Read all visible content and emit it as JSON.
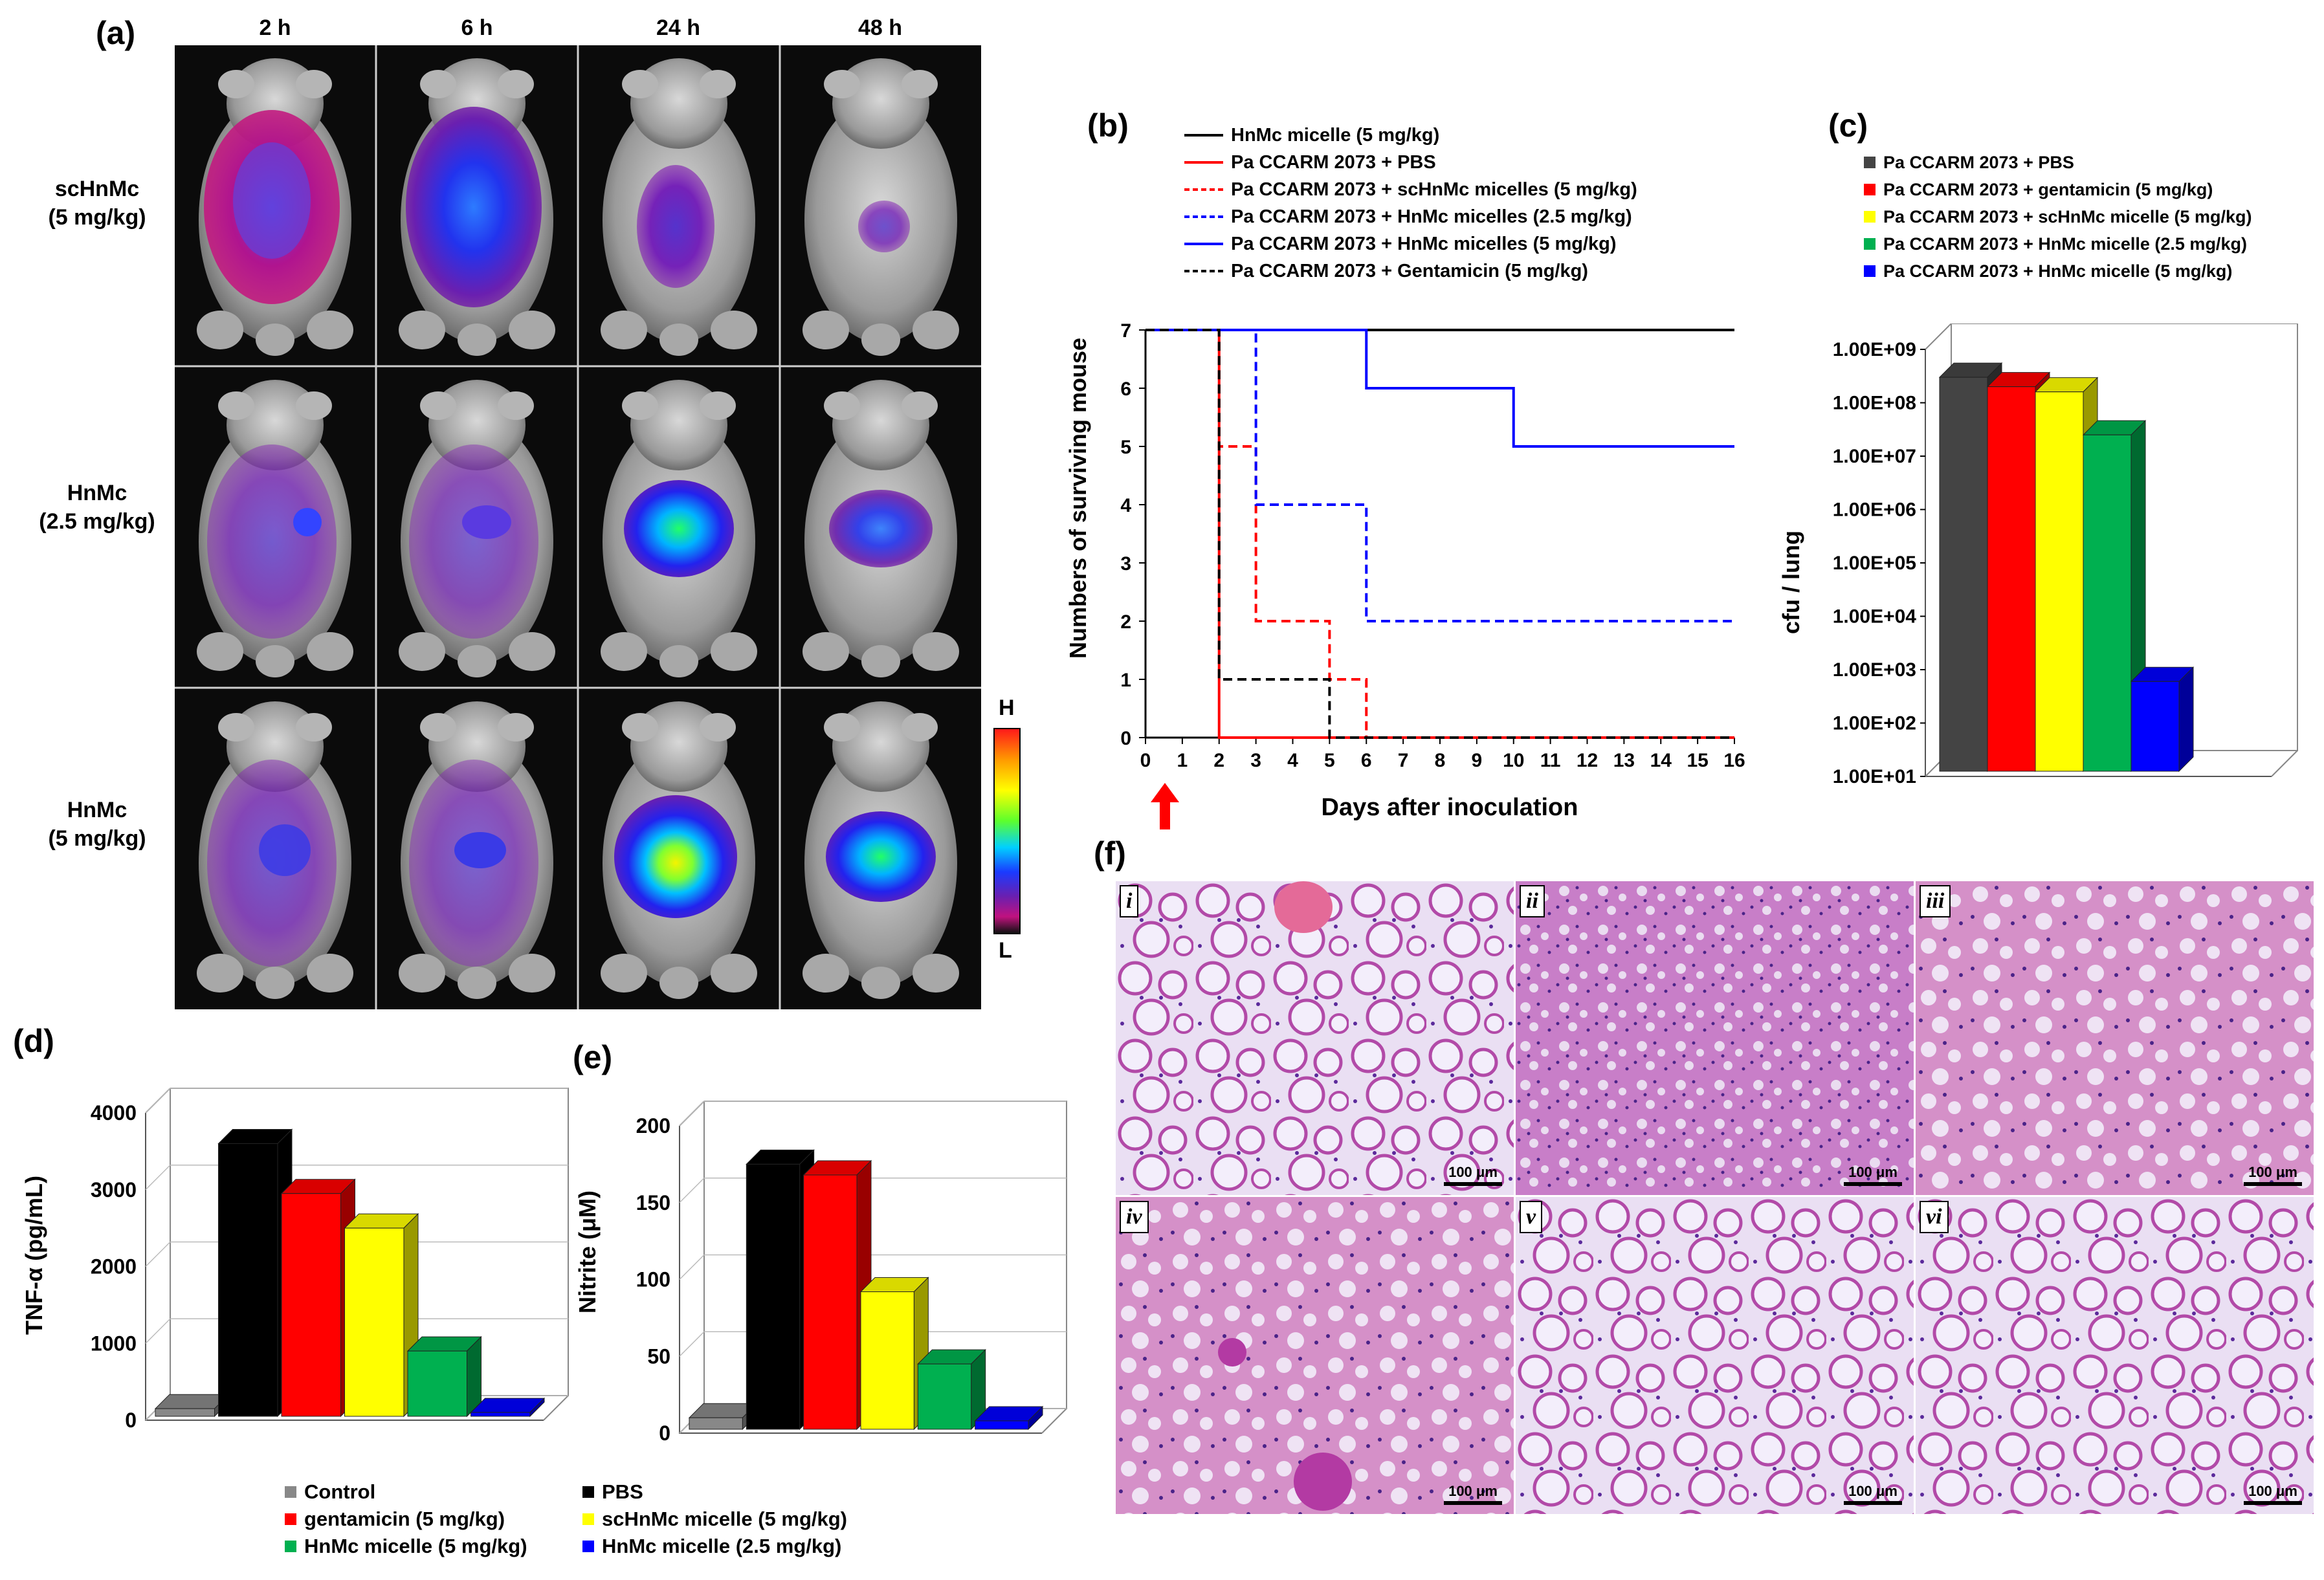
{
  "panel_a": {
    "label": "(a)",
    "time_labels": [
      "2 h",
      "6 h",
      "24 h",
      "48 h"
    ],
    "rows": [
      {
        "line1": "scHnMc",
        "line2": "(5 mg/kg)"
      },
      {
        "line1": "HnMc",
        "line2": "(2.5 mg/kg)"
      },
      {
        "line1": "HnMc",
        "line2": "(5 mg/kg)"
      }
    ],
    "colorbar": {
      "high": "H",
      "low": "L"
    }
  },
  "panel_b": {
    "label": "(b)"
  },
  "panel_c": {
    "label": "(c)"
  },
  "panel_d": {
    "label": "(d)"
  },
  "panel_e": {
    "label": "(e)"
  },
  "panel_f": {
    "label": "(f)",
    "subpanels": [
      "i",
      "ii",
      "iii",
      "iv",
      "v",
      "vi"
    ],
    "scale_text": "100 μm"
  },
  "chart_data": [
    {
      "id": "b",
      "type": "line",
      "xlabel": "Days after inoculation",
      "ylabel": "Numbers of surviving mouse",
      "xlim": [
        0,
        16
      ],
      "ylim": [
        0,
        7
      ],
      "xticks": [
        "0",
        "1",
        "2",
        "3",
        "4",
        "5",
        "6",
        "7",
        "8",
        "9",
        "10",
        "11",
        "12",
        "13",
        "14",
        "15",
        "16"
      ],
      "yticks": [
        "0",
        "1",
        "2",
        "3",
        "4",
        "5",
        "6",
        "7"
      ],
      "annotation": "arrow at day 1 (treatment)",
      "series": [
        {
          "name": "HnMc micelle (5 mg/kg)",
          "color": "#000000",
          "dash": "solid",
          "x": [
            0,
            16
          ],
          "y": [
            7,
            7
          ]
        },
        {
          "name": "Pa CCARM 2073 + PBS",
          "color": "#ff0000",
          "dash": "solid",
          "x": [
            0,
            2,
            2,
            16
          ],
          "y": [
            7,
            7,
            0,
            0
          ]
        },
        {
          "name": "Pa CCARM 2073 + scHnMc micelles  (5 mg/kg)",
          "color": "#ff0000",
          "dash": "dashed",
          "x": [
            0,
            2,
            2,
            3,
            3,
            5,
            5,
            6,
            6,
            16
          ],
          "y": [
            7,
            7,
            5,
            5,
            2,
            2,
            1,
            1,
            0,
            0
          ]
        },
        {
          "name": "Pa CCARM 2073 + HnMc micelles  (2.5 mg/kg)",
          "color": "#0000ff",
          "dash": "dashed",
          "x": [
            0,
            3,
            3,
            6,
            6,
            16
          ],
          "y": [
            7,
            7,
            4,
            4,
            2,
            2
          ]
        },
        {
          "name": "Pa CCARM 2073 + HnMc micelles  (5 mg/kg)",
          "color": "#0000ff",
          "dash": "solid",
          "x": [
            0,
            6,
            6,
            10,
            10,
            16
          ],
          "y": [
            7,
            7,
            6,
            6,
            5,
            5
          ]
        },
        {
          "name": "Pa CCARM 2073 + Gentamicin (5 mg/kg)",
          "color": "#000000",
          "dash": "dashed",
          "x": [
            0,
            2,
            2,
            5,
            5,
            16
          ],
          "y": [
            7,
            7,
            1,
            1,
            0,
            0
          ]
        }
      ]
    },
    {
      "id": "c",
      "type": "bar",
      "ylabel": "cfu / lung",
      "yscale": "log",
      "yticks": [
        "1.00E+01",
        "1.00E+02",
        "1.00E+03",
        "1.00E+04",
        "1.00E+05",
        "1.00E+06",
        "1.00E+07",
        "1.00E+08",
        "1.00E+09"
      ],
      "ylim": [
        10,
        1000000000
      ],
      "categories": [
        "Pa CCARM 2073 + PBS",
        "Pa CCARM 2073 + gentamicin (5 mg/kg)",
        "Pa CCARM 2073 + scHnMc micelle (5 mg/kg)",
        "Pa CCARM 2073 + HnMc micelle (2.5 mg/kg)",
        "Pa CCARM 2073 + HnMc micelle (5 mg/kg)"
      ],
      "values": [
        300000000,
        200000000,
        160000000,
        25000000,
        600
      ],
      "colors": [
        "#444444",
        "#ff0000",
        "#ffff00",
        "#00b050",
        "#0000ff"
      ]
    },
    {
      "id": "d",
      "type": "bar",
      "ylabel": "TNF-α (pg/mL)",
      "ylim": [
        0,
        4000
      ],
      "yticks": [
        "0",
        "1000",
        "2000",
        "3000",
        "4000"
      ],
      "categories": [
        "Control",
        "PBS",
        "gentamicin (5 mg/kg)",
        "scHnMc micelle (5 mg/kg)",
        "HnMc micelle (5 mg/kg)",
        "HnMc micelle (2.5 mg/kg)"
      ],
      "values": [
        150,
        3600,
        2950,
        2500,
        900,
        100
      ],
      "colors": [
        "#888888",
        "#000000",
        "#ff0000",
        "#ffff00",
        "#00b050",
        "#0000ff"
      ]
    },
    {
      "id": "e",
      "type": "bar",
      "ylabel": "Nitrite (μM)",
      "ylim": [
        0,
        200
      ],
      "yticks": [
        "0",
        "50",
        "100",
        "150",
        "200"
      ],
      "categories": [
        "Control",
        "PBS",
        "gentamicin (5 mg/kg)",
        "scHnMc micelle (5 mg/kg)",
        "HnMc micelle (5 mg/kg)",
        "HnMc micelle (2.5 mg/kg)"
      ],
      "values": [
        10,
        175,
        168,
        92,
        45,
        8
      ],
      "colors": [
        "#888888",
        "#000000",
        "#ff0000",
        "#ffff00",
        "#00b050",
        "#0000ff"
      ]
    }
  ],
  "legend_de": [
    {
      "label": "Control",
      "color": "#888888"
    },
    {
      "label": "gentamicin (5 mg/kg)",
      "color": "#ff0000"
    },
    {
      "label": "HnMc micelle (5 mg/kg)",
      "color": "#00b050"
    },
    {
      "label": "PBS",
      "color": "#000000"
    },
    {
      "label": "scHnMc micelle (5 mg/kg)",
      "color": "#ffff00"
    },
    {
      "label": "HnMc micelle (2.5 mg/kg)",
      "color": "#0000ff"
    }
  ]
}
